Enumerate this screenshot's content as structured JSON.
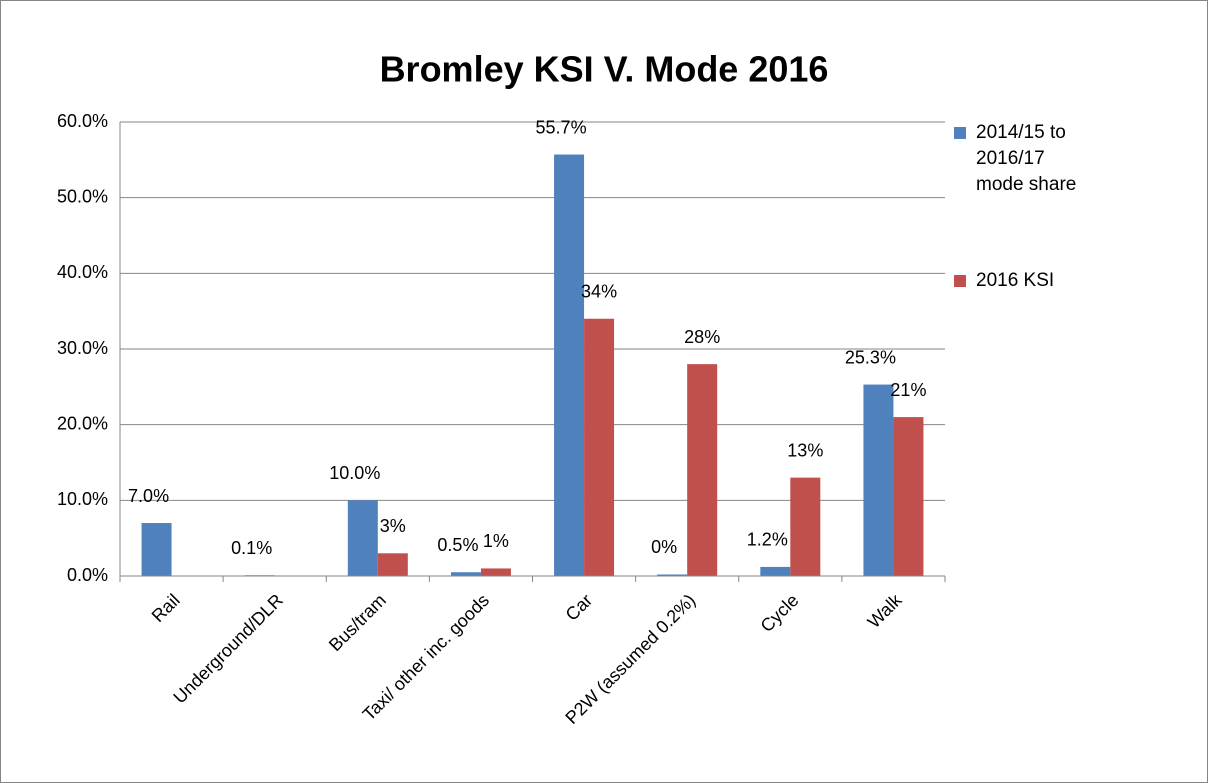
{
  "chart_data": {
    "type": "bar",
    "title": "Bromley KSI V. Mode 2016",
    "categories": [
      "Rail",
      "Underground/DLR",
      "Bus/tram",
      "Taxi/ other inc. goods",
      "Car",
      "P2W (assumed 0.2%)",
      "Cycle",
      "Walk"
    ],
    "series": [
      {
        "name": "2014/15 to 2016/17 mode share",
        "color": "#4f81bd",
        "values": [
          7.0,
          0.1,
          10.0,
          0.5,
          55.7,
          0.2,
          1.2,
          25.3
        ],
        "value_labels": [
          "7.0%",
          "0.1%",
          "10.0%",
          "0.5%",
          "55.7%",
          "0%",
          "1.2%",
          "25.3%"
        ]
      },
      {
        "name": "2016 KSI",
        "color": "#c0504d",
        "values": [
          null,
          null,
          3,
          1,
          34,
          28,
          13,
          21
        ],
        "value_labels": [
          null,
          null,
          "3%",
          "1%",
          "34%",
          "28%",
          "13%",
          "21%"
        ]
      }
    ],
    "ylim": [
      0,
      60
    ],
    "yticks": [
      {
        "value": 0,
        "label": "0.0%"
      },
      {
        "value": 10,
        "label": "10.0%"
      },
      {
        "value": 20,
        "label": "20.0%"
      },
      {
        "value": 30,
        "label": "30.0%"
      },
      {
        "value": 40,
        "label": "40.0%"
      },
      {
        "value": 50,
        "label": "50.0%"
      },
      {
        "value": 60,
        "label": "60.0%"
      }
    ],
    "grid": true,
    "legend": "right"
  }
}
